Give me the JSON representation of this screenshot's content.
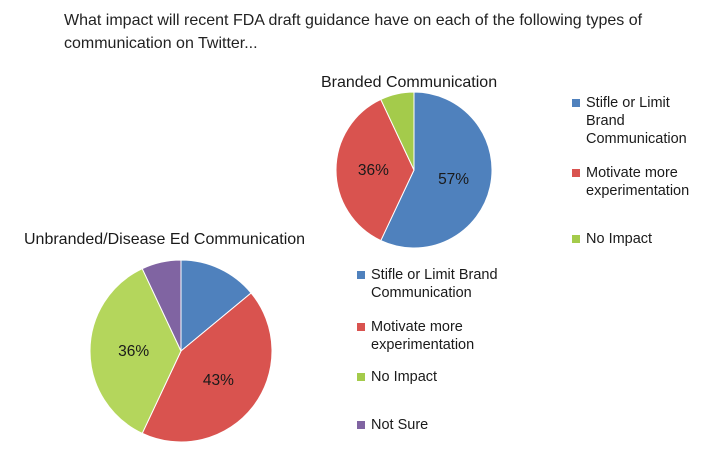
{
  "question": "What impact will recent FDA draft guidance have on each of the following types of communication on Twitter...",
  "chart_data": [
    {
      "type": "pie",
      "title": "Branded Communication",
      "slices": [
        {
          "name": "Stifle or Limit Brand Communication",
          "value": 57,
          "label": "57%",
          "color": "#4f81bd"
        },
        {
          "name": "Motivate more experimentation",
          "value": 36,
          "label": "36%",
          "color": "#d9534f"
        },
        {
          "name": "No Impact",
          "value": 7,
          "label": "",
          "color": "#a4cb4b"
        }
      ],
      "legend": [
        {
          "text": "Stifle or Limit\nBrand\nCommunication",
          "color": "#4f81bd"
        },
        {
          "text": "Motivate more\nexperimentation",
          "color": "#d9534f"
        },
        {
          "text": "No Impact",
          "color": "#a4cb4b"
        }
      ]
    },
    {
      "type": "pie",
      "title": "Unbranded/Disease Ed Communication",
      "slices": [
        {
          "name": "Stifle or Limit Brand Communication",
          "value": 14,
          "label": "",
          "color": "#4f81bd"
        },
        {
          "name": "Motivate more experimentation",
          "value": 43,
          "label": "43%",
          "color": "#d9534f"
        },
        {
          "name": "No Impact",
          "value": 36,
          "label": "36%",
          "color": "#b4d65c"
        },
        {
          "name": "Not Sure",
          "value": 7,
          "label": "",
          "color": "#8064a2"
        }
      ],
      "legend": [
        {
          "text": "Stifle or Limit Brand\nCommunication",
          "color": "#4f81bd"
        },
        {
          "text": "Motivate more\nexperimentation",
          "color": "#d9534f"
        },
        {
          "text": "No Impact",
          "color": "#a4cb4b"
        },
        {
          "text": "Not Sure",
          "color": "#8064a2"
        }
      ]
    }
  ]
}
